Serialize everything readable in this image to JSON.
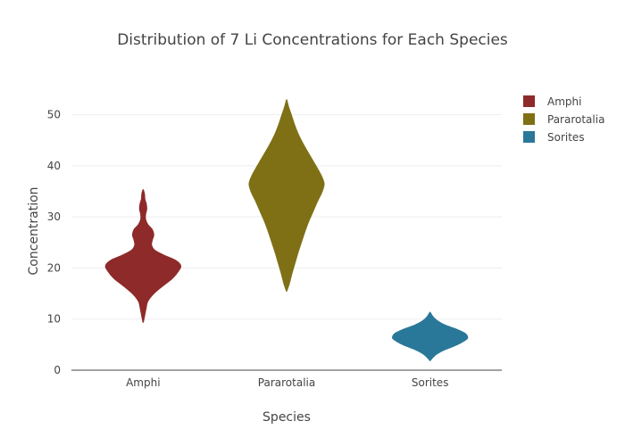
{
  "chart_data": {
    "type": "violin",
    "title": "Distribution of 7  Li  Concentrations for Each Species",
    "xlabel": "Species",
    "ylabel": "Concentration",
    "categories": [
      "Amphi",
      "Pararotalia",
      "Sorites"
    ],
    "ylim": [
      0,
      55
    ],
    "yticks": [
      0,
      10,
      20,
      30,
      40,
      50
    ],
    "grid": true,
    "legend_position": "top-right",
    "series": [
      {
        "name": "Amphi",
        "color": "#8e2a2a",
        "min": 9.4,
        "max": 35.3,
        "profile": [
          [
            9.4,
            0.0
          ],
          [
            10.5,
            0.03
          ],
          [
            12.0,
            0.07
          ],
          [
            13.5,
            0.12
          ],
          [
            15.0,
            0.28
          ],
          [
            16.5,
            0.52
          ],
          [
            18.0,
            0.78
          ],
          [
            19.5,
            0.95
          ],
          [
            20.5,
            1.0
          ],
          [
            21.5,
            0.86
          ],
          [
            22.5,
            0.55
          ],
          [
            23.5,
            0.3
          ],
          [
            24.5,
            0.22
          ],
          [
            25.5,
            0.24
          ],
          [
            26.5,
            0.28
          ],
          [
            27.5,
            0.24
          ],
          [
            28.5,
            0.12
          ],
          [
            29.5,
            0.06
          ],
          [
            30.5,
            0.06
          ],
          [
            31.5,
            0.09
          ],
          [
            32.5,
            0.08
          ],
          [
            33.5,
            0.04
          ],
          [
            34.5,
            0.03
          ],
          [
            35.3,
            0.0
          ]
        ]
      },
      {
        "name": "Pararotalia",
        "color": "#7f7016",
        "min": 15.5,
        "max": 52.9,
        "profile": [
          [
            15.5,
            0.0
          ],
          [
            17.0,
            0.07
          ],
          [
            19.0,
            0.14
          ],
          [
            21.0,
            0.22
          ],
          [
            23.0,
            0.3
          ],
          [
            25.0,
            0.39
          ],
          [
            27.0,
            0.48
          ],
          [
            29.0,
            0.58
          ],
          [
            31.0,
            0.7
          ],
          [
            33.0,
            0.82
          ],
          [
            35.0,
            0.95
          ],
          [
            36.5,
            1.0
          ],
          [
            38.0,
            0.93
          ],
          [
            40.0,
            0.78
          ],
          [
            42.0,
            0.62
          ],
          [
            44.0,
            0.46
          ],
          [
            46.0,
            0.32
          ],
          [
            48.0,
            0.21
          ],
          [
            50.0,
            0.12
          ],
          [
            51.5,
            0.05
          ],
          [
            52.9,
            0.0
          ]
        ]
      },
      {
        "name": "Sorites",
        "color": "#2a7899",
        "min": 1.9,
        "max": 11.3,
        "profile": [
          [
            1.9,
            0.0
          ],
          [
            2.5,
            0.07
          ],
          [
            3.2,
            0.18
          ],
          [
            4.0,
            0.38
          ],
          [
            5.0,
            0.72
          ],
          [
            6.0,
            0.96
          ],
          [
            6.5,
            1.0
          ],
          [
            7.2,
            0.93
          ],
          [
            8.0,
            0.7
          ],
          [
            8.8,
            0.4
          ],
          [
            9.6,
            0.2
          ],
          [
            10.4,
            0.08
          ],
          [
            11.3,
            0.0
          ]
        ]
      }
    ]
  }
}
